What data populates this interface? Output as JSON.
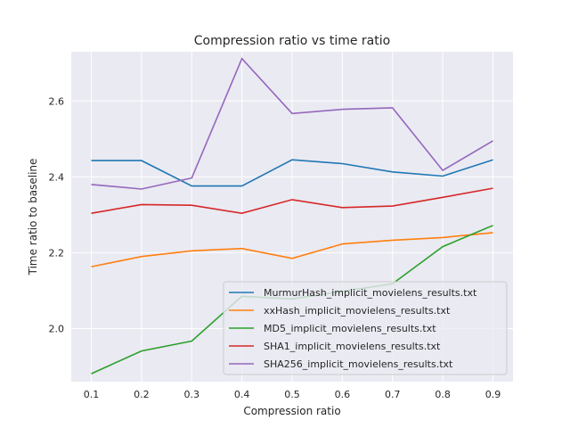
{
  "chart_data": {
    "type": "line",
    "title": "Compression ratio vs time ratio",
    "xlabel": "Compression ratio",
    "ylabel": "Time ratio to baseline",
    "x": [
      0.1,
      0.2,
      0.3,
      0.4,
      0.5,
      0.6,
      0.7,
      0.8,
      0.9
    ],
    "x_ticks": [
      "0.1",
      "0.2",
      "0.3",
      "0.4",
      "0.5",
      "0.6",
      "0.7",
      "0.8",
      "0.9"
    ],
    "y_ticks": [
      2.0,
      2.2,
      2.4,
      2.6
    ],
    "y_tick_labels": [
      "2.0",
      "2.2",
      "2.4",
      "2.6"
    ],
    "xlim": [
      0.06,
      0.94
    ],
    "ylim": [
      1.86,
      2.73
    ],
    "grid": true,
    "legend_position": "lower-right",
    "series": [
      {
        "name": "MurmurHash_implicit_movielens_results.txt",
        "color": "#1f77b4",
        "values": [
          2.443,
          2.443,
          2.376,
          2.376,
          2.445,
          2.435,
          2.413,
          2.402,
          2.445
        ]
      },
      {
        "name": "xxHash_implicit_movielens_results.txt",
        "color": "#ff7f0e",
        "values": [
          2.163,
          2.19,
          2.205,
          2.211,
          2.185,
          2.223,
          2.233,
          2.24,
          2.253
        ]
      },
      {
        "name": "MD5_implicit_movielens_results.txt",
        "color": "#2ca02c",
        "values": [
          1.881,
          1.941,
          1.967,
          2.085,
          2.078,
          2.098,
          2.118,
          2.216,
          2.272
        ]
      },
      {
        "name": "SHA1_implicit_movielens_results.txt",
        "color": "#d62728",
        "values": [
          2.304,
          2.327,
          2.325,
          2.304,
          2.34,
          2.319,
          2.323,
          2.346,
          2.37
        ]
      },
      {
        "name": "SHA256_implicit_movielens_results.txt",
        "color": "#9467bd",
        "values": [
          2.38,
          2.368,
          2.397,
          2.712,
          2.567,
          2.578,
          2.582,
          2.417,
          2.495
        ]
      }
    ]
  }
}
